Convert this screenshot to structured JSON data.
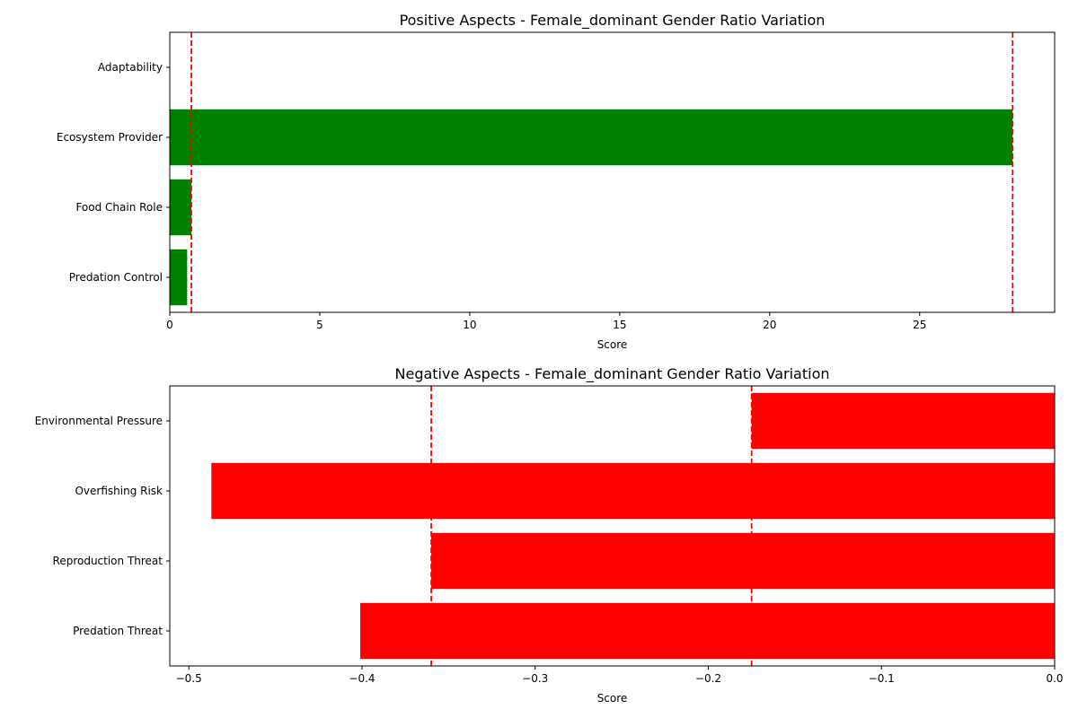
{
  "chart_data": [
    {
      "type": "bar",
      "orientation": "horizontal",
      "title": "Positive Aspects - Female_dominant Gender Ratio Variation",
      "xlabel": "Score",
      "ylabel": "",
      "xlim": [
        0,
        29.5
      ],
      "xticks": [
        0,
        5,
        10,
        15,
        20,
        25
      ],
      "xtick_labels": [
        "0",
        "5",
        "10",
        "15",
        "20",
        "25"
      ],
      "categories": [
        "Adaptability",
        "Ecosystem Provider",
        "Food Chain Role",
        "Predation Control"
      ],
      "values": [
        0,
        28.1,
        0.72,
        0.58
      ],
      "bar_color": "#008000",
      "reference_lines": [
        0.72,
        28.1
      ],
      "reference_color": "#ff0000",
      "grid": false
    },
    {
      "type": "bar",
      "orientation": "horizontal",
      "title": "Negative Aspects - Female_dominant Gender Ratio Variation",
      "xlabel": "Score",
      "ylabel": "",
      "xlim": [
        -0.511,
        0
      ],
      "xticks": [
        -0.5,
        -0.4,
        -0.3,
        -0.2,
        -0.1,
        0
      ],
      "xtick_labels": [
        "−0.5",
        "−0.4",
        "−0.3",
        "−0.2",
        "−0.1",
        "0.0"
      ],
      "categories": [
        "Environmental Pressure",
        "Overfishing Risk",
        "Reproduction Threat",
        "Predation Threat"
      ],
      "values": [
        -0.175,
        -0.487,
        -0.36,
        -0.401
      ],
      "bar_color": "#ff0000",
      "reference_lines": [
        -0.36,
        -0.175
      ],
      "reference_color": "#ff0000",
      "grid": false
    }
  ]
}
